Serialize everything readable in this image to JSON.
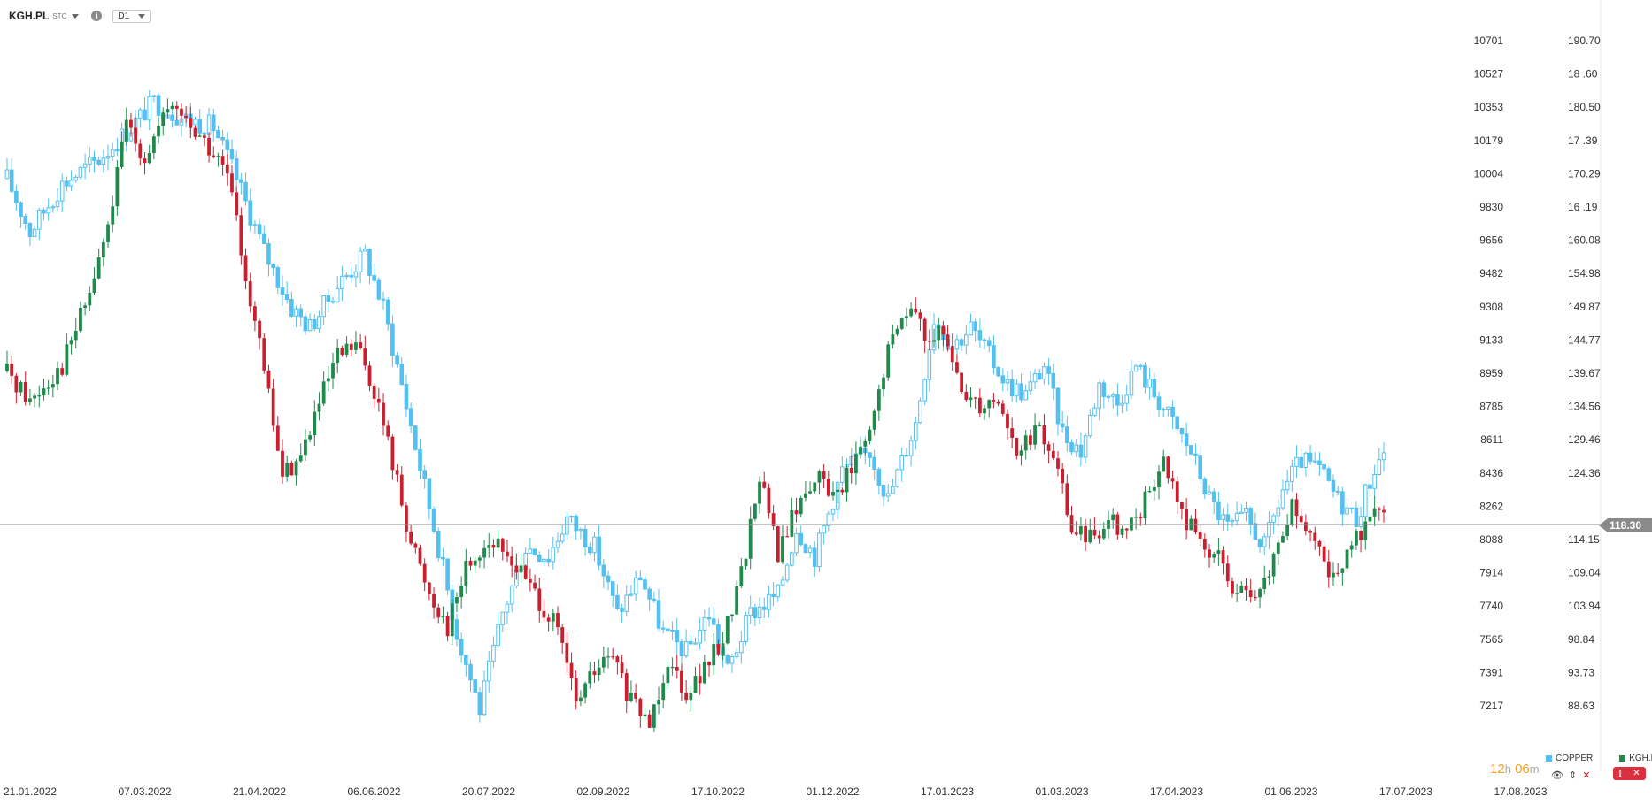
{
  "header": {
    "symbol": "KGH.PL",
    "suffix": "STC",
    "info": "i",
    "timeframe": "D1"
  },
  "timer": {
    "hours": "12",
    "h": "h",
    "minutes": "06",
    "m": "m"
  },
  "controls": {
    "eye": "👁",
    "sort": "⇕",
    "close": "✕"
  },
  "colors": {
    "copper": "#53c0f0",
    "up": "#1f8a4c",
    "down": "#c8202f",
    "grid": "#e8e8e8",
    "price_line": "#8c8c8c",
    "price_tag": "#8a8a8a"
  },
  "chart_data": {
    "type": "candlestick",
    "x_ticks": [
      "21.01.2022",
      "07.03.2022",
      "21.04.2022",
      "06.06.2022",
      "20.07.2022",
      "02.09.2022",
      "17.10.2022",
      "01.12.2022",
      "17.01.2023",
      "01.03.2023",
      "17.04.2023",
      "01.06.2023",
      "17.07.2023",
      "17.08.2023"
    ],
    "y_ticks_left": [
      10701,
      10527,
      10353,
      10179,
      10004,
      9830,
      9656,
      9482,
      9308,
      9133,
      8959,
      8785,
      8611,
      8436,
      8262,
      8088,
      7914,
      7740,
      7565,
      7391,
      7217
    ],
    "y_ticks_right": [
      "190.70",
      "18 .60",
      "180.50",
      "17 .39",
      "170.29",
      "16 .19",
      "160.08",
      "154.98",
      "149.87",
      "144.77",
      "139.67",
      "134.56",
      "129.46",
      "124.36",
      "",
      "114.15",
      "109.04",
      "103.94",
      "98.84",
      "93.73",
      "88.63"
    ],
    "current_price": "118.30",
    "series": [
      {
        "name": "COPPER",
        "anchors": [
          [
            0,
            9980
          ],
          [
            5,
            9700
          ],
          [
            12,
            9950
          ],
          [
            20,
            10080
          ],
          [
            25,
            10200
          ],
          [
            32,
            10380
          ],
          [
            38,
            10300
          ],
          [
            45,
            10250
          ],
          [
            50,
            9980
          ],
          [
            56,
            9600
          ],
          [
            62,
            9300
          ],
          [
            66,
            9200
          ],
          [
            72,
            9420
          ],
          [
            78,
            9580
          ],
          [
            82,
            9300
          ],
          [
            86,
            8900
          ],
          [
            90,
            8470
          ],
          [
            94,
            8050
          ],
          [
            98,
            7600
          ],
          [
            103,
            7200
          ],
          [
            108,
            7700
          ],
          [
            113,
            8050
          ],
          [
            118,
            8000
          ],
          [
            122,
            8200
          ],
          [
            128,
            8050
          ],
          [
            133,
            7700
          ],
          [
            138,
            7900
          ],
          [
            143,
            7600
          ],
          [
            148,
            7500
          ],
          [
            153,
            7700
          ],
          [
            157,
            7400
          ],
          [
            162,
            7700
          ],
          [
            168,
            7800
          ],
          [
            172,
            8150
          ],
          [
            176,
            8000
          ],
          [
            182,
            8450
          ],
          [
            188,
            8550
          ],
          [
            192,
            8300
          ],
          [
            198,
            8700
          ],
          [
            202,
            9250
          ],
          [
            206,
            9100
          ],
          [
            210,
            9200
          ],
          [
            214,
            9050
          ],
          [
            218,
            8900
          ],
          [
            222,
            8850
          ],
          [
            226,
            9000
          ],
          [
            230,
            8650
          ],
          [
            234,
            8550
          ],
          [
            238,
            8900
          ],
          [
            242,
            8800
          ],
          [
            246,
            9000
          ],
          [
            250,
            8850
          ],
          [
            254,
            8700
          ],
          [
            258,
            8550
          ],
          [
            262,
            8300
          ],
          [
            266,
            8150
          ],
          [
            270,
            8200
          ],
          [
            274,
            8050
          ],
          [
            278,
            8350
          ],
          [
            282,
            8500
          ],
          [
            286,
            8450
          ],
          [
            290,
            8300
          ],
          [
            294,
            8200
          ],
          [
            298,
            8460
          ],
          [
            300,
            8550
          ]
        ]
      },
      {
        "name": "KGH.PL",
        "anchors": [
          [
            0,
            140.0
          ],
          [
            5,
            135.5
          ],
          [
            12,
            141.0
          ],
          [
            18,
            152.0
          ],
          [
            22,
            162.0
          ],
          [
            26,
            178.0
          ],
          [
            30,
            173.0
          ],
          [
            36,
            181.0
          ],
          [
            42,
            176.0
          ],
          [
            48,
            170.0
          ],
          [
            52,
            155.0
          ],
          [
            56,
            140.0
          ],
          [
            60,
            124.0
          ],
          [
            64,
            127.0
          ],
          [
            68,
            135.0
          ],
          [
            72,
            142.0
          ],
          [
            76,
            144.0
          ],
          [
            80,
            137.0
          ],
          [
            84,
            126.0
          ],
          [
            88,
            114.0
          ],
          [
            92,
            106.0
          ],
          [
            96,
            101.0
          ],
          [
            100,
            110.0
          ],
          [
            105,
            114.0
          ],
          [
            110,
            111.0
          ],
          [
            115,
            106.0
          ],
          [
            120,
            100.0
          ],
          [
            124,
            89.0
          ],
          [
            128,
            94.0
          ],
          [
            132,
            96.0
          ],
          [
            136,
            89.0
          ],
          [
            140,
            86.0
          ],
          [
            144,
            96.0
          ],
          [
            148,
            91.0
          ],
          [
            152,
            94.0
          ],
          [
            156,
            99.0
          ],
          [
            160,
            109.0
          ],
          [
            164,
            124.0
          ],
          [
            168,
            112.0
          ],
          [
            172,
            119.0
          ],
          [
            176,
            124.0
          ],
          [
            180,
            121.0
          ],
          [
            184,
            125.0
          ],
          [
            188,
            130.0
          ],
          [
            192,
            143.0
          ],
          [
            196,
            150.0
          ],
          [
            200,
            146.0
          ],
          [
            204,
            145.0
          ],
          [
            208,
            137.0
          ],
          [
            212,
            135.0
          ],
          [
            216,
            136.0
          ],
          [
            220,
            127.0
          ],
          [
            224,
            131.0
          ],
          [
            228,
            127.0
          ],
          [
            232,
            116.0
          ],
          [
            236,
            114.0
          ],
          [
            240,
            118.0
          ],
          [
            244,
            115.0
          ],
          [
            248,
            120.0
          ],
          [
            252,
            126.0
          ],
          [
            256,
            118.0
          ],
          [
            260,
            114.0
          ],
          [
            264,
            111.0
          ],
          [
            268,
            106.0
          ],
          [
            272,
            104.0
          ],
          [
            276,
            111.0
          ],
          [
            280,
            119.0
          ],
          [
            284,
            114.0
          ],
          [
            288,
            109.0
          ],
          [
            292,
            111.0
          ],
          [
            296,
            117.0
          ],
          [
            300,
            118.3
          ]
        ]
      }
    ]
  },
  "legend": [
    {
      "name": "COPPER",
      "color": "#53c0f0"
    },
    {
      "name": "KGH.PL",
      "color": "#1f8a4c"
    }
  ]
}
